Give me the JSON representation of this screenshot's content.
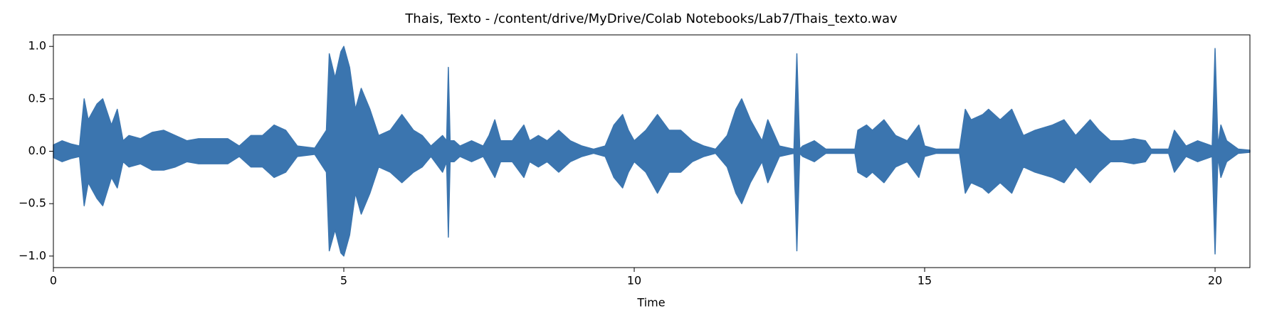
{
  "chart_data": {
    "type": "waveform",
    "title": "Thais, Texto -  /content/drive/MyDrive/Colab Notebooks/Lab7/Thais_texto.wav",
    "x_label": "Time",
    "color": "#3b75af",
    "xlim": [
      0,
      20.6
    ],
    "ylim": [
      -1.11,
      1.11
    ],
    "xticks": [
      0,
      5,
      10,
      15,
      20
    ],
    "yticks": [
      {
        "value": -1,
        "label": "−1.0"
      },
      {
        "value": -0.5,
        "label": "−0.5"
      },
      {
        "value": 0,
        "label": "0.0"
      },
      {
        "value": 0.5,
        "label": "0.5"
      },
      {
        "value": 1,
        "label": "1.0"
      }
    ],
    "x": [
      0,
      0.15,
      0.3,
      0.45,
      0.53,
      0.6,
      0.75,
      0.85,
      1.0,
      1.1,
      1.2,
      1.3,
      1.5,
      1.7,
      1.9,
      2.1,
      2.3,
      2.5,
      2.8,
      3.0,
      3.2,
      3.4,
      3.6,
      3.8,
      4.0,
      4.2,
      4.5,
      4.7,
      4.75,
      4.85,
      4.95,
      5.0,
      5.1,
      5.2,
      5.3,
      5.45,
      5.6,
      5.8,
      6.0,
      6.2,
      6.35,
      6.5,
      6.7,
      6.77,
      6.8,
      6.83,
      6.9,
      7.0,
      7.2,
      7.4,
      7.5,
      7.6,
      7.7,
      7.9,
      8.1,
      8.2,
      8.35,
      8.5,
      8.7,
      8.9,
      9.1,
      9.3,
      9.5,
      9.65,
      9.8,
      9.9,
      10.0,
      10.2,
      10.4,
      10.6,
      10.8,
      11.0,
      11.2,
      11.4,
      11.6,
      11.75,
      11.85,
      12.0,
      12.2,
      12.3,
      12.5,
      12.75,
      12.8,
      12.85,
      12.9,
      13.1,
      13.3,
      13.8,
      13.85,
      14.0,
      14.1,
      14.3,
      14.5,
      14.7,
      14.9,
      15.0,
      15.2,
      15.6,
      15.7,
      15.8,
      16.0,
      16.1,
      16.3,
      16.5,
      16.7,
      16.9,
      17.2,
      17.4,
      17.6,
      17.85,
      18.0,
      18.2,
      18.4,
      18.6,
      18.8,
      18.9,
      19.2,
      19.3,
      19.5,
      19.7,
      19.95,
      20.0,
      20.05,
      20.1,
      20.2,
      20.4,
      20.6
    ],
    "upper": [
      0.06,
      0.1,
      0.07,
      0.05,
      0.5,
      0.3,
      0.45,
      0.5,
      0.25,
      0.4,
      0.1,
      0.15,
      0.12,
      0.18,
      0.2,
      0.15,
      0.1,
      0.12,
      0.12,
      0.12,
      0.05,
      0.15,
      0.15,
      0.25,
      0.2,
      0.05,
      0.03,
      0.2,
      0.93,
      0.7,
      0.95,
      1.0,
      0.8,
      0.4,
      0.6,
      0.4,
      0.15,
      0.2,
      0.35,
      0.2,
      0.15,
      0.05,
      0.15,
      0.1,
      0.8,
      0.1,
      0.1,
      0.05,
      0.1,
      0.05,
      0.15,
      0.3,
      0.1,
      0.1,
      0.25,
      0.1,
      0.15,
      0.1,
      0.2,
      0.1,
      0.05,
      0.02,
      0.05,
      0.25,
      0.35,
      0.2,
      0.1,
      0.2,
      0.35,
      0.2,
      0.2,
      0.1,
      0.05,
      0.02,
      0.15,
      0.4,
      0.5,
      0.3,
      0.1,
      0.3,
      0.05,
      0.02,
      0.93,
      0.02,
      0.05,
      0.1,
      0.02,
      0.02,
      0.2,
      0.25,
      0.2,
      0.3,
      0.15,
      0.1,
      0.25,
      0.05,
      0.02,
      0.02,
      0.4,
      0.3,
      0.35,
      0.4,
      0.3,
      0.4,
      0.15,
      0.2,
      0.25,
      0.3,
      0.15,
      0.3,
      0.2,
      0.1,
      0.1,
      0.12,
      0.1,
      0.02,
      0.02,
      0.2,
      0.05,
      0.1,
      0.05,
      0.98,
      0.05,
      0.25,
      0.1,
      0.02,
      0.01
    ],
    "lower": [
      -0.06,
      -0.1,
      -0.07,
      -0.05,
      -0.52,
      -0.3,
      -0.45,
      -0.52,
      -0.25,
      -0.35,
      -0.1,
      -0.15,
      -0.12,
      -0.18,
      -0.18,
      -0.15,
      -0.1,
      -0.12,
      -0.12,
      -0.12,
      -0.05,
      -0.15,
      -0.15,
      -0.25,
      -0.2,
      -0.05,
      -0.03,
      -0.2,
      -0.95,
      -0.75,
      -0.97,
      -1.0,
      -0.8,
      -0.4,
      -0.6,
      -0.4,
      -0.15,
      -0.2,
      -0.3,
      -0.2,
      -0.15,
      -0.05,
      -0.2,
      -0.1,
      -0.82,
      -0.1,
      -0.1,
      -0.05,
      -0.1,
      -0.05,
      -0.15,
      -0.25,
      -0.1,
      -0.1,
      -0.25,
      -0.1,
      -0.15,
      -0.1,
      -0.2,
      -0.1,
      -0.05,
      -0.02,
      -0.05,
      -0.25,
      -0.35,
      -0.2,
      -0.1,
      -0.2,
      -0.4,
      -0.2,
      -0.2,
      -0.1,
      -0.05,
      -0.02,
      -0.15,
      -0.4,
      -0.5,
      -0.3,
      -0.1,
      -0.3,
      -0.05,
      -0.02,
      -0.95,
      -0.02,
      -0.05,
      -0.1,
      -0.02,
      -0.02,
      -0.2,
      -0.25,
      -0.2,
      -0.3,
      -0.15,
      -0.1,
      -0.25,
      -0.05,
      -0.02,
      -0.02,
      -0.4,
      -0.3,
      -0.35,
      -0.4,
      -0.3,
      -0.4,
      -0.15,
      -0.2,
      -0.25,
      -0.3,
      -0.15,
      -0.3,
      -0.2,
      -0.1,
      -0.1,
      -0.12,
      -0.1,
      -0.02,
      -0.02,
      -0.2,
      -0.05,
      -0.1,
      -0.05,
      -0.98,
      -0.05,
      -0.25,
      -0.1,
      -0.02,
      -0.01
    ]
  }
}
